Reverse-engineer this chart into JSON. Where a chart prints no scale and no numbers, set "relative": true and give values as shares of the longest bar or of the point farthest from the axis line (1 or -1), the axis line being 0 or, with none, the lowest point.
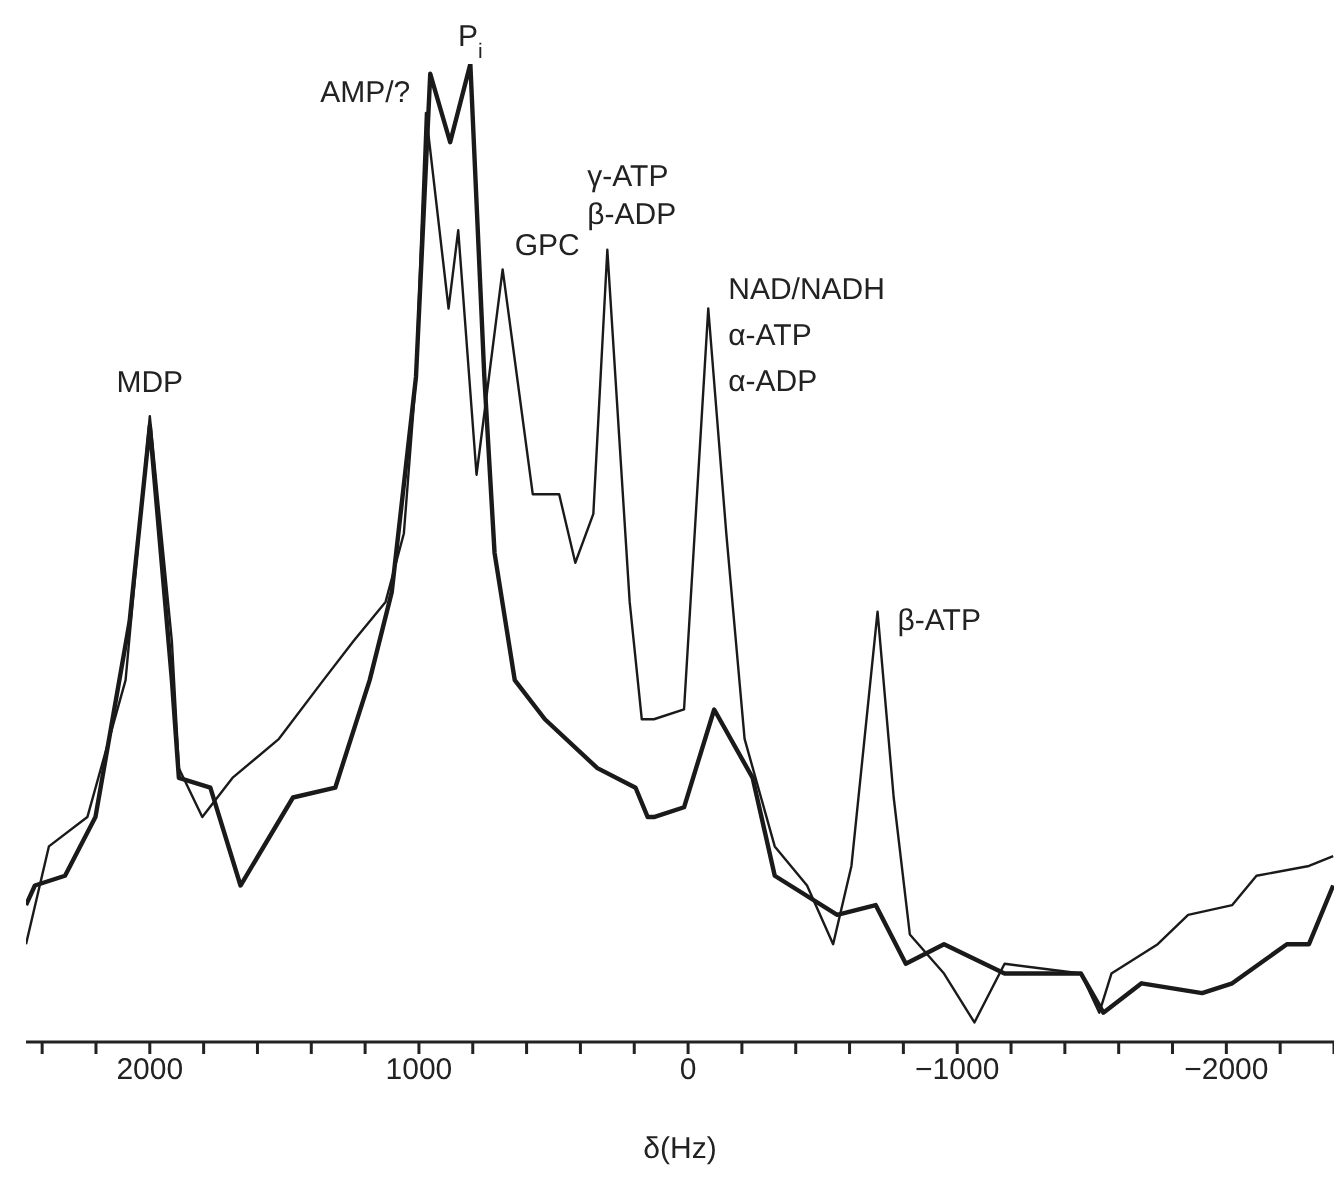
{
  "chart_data": {
    "type": "line",
    "relative": true,
    "xlabel": "δ(Hz)",
    "xlim": [
      2460,
      -2400
    ],
    "xticks": [
      {
        "value": 2400,
        "label": null
      },
      {
        "value": 2200,
        "label": null
      },
      2000,
      {
        "value": 1800,
        "label": null
      },
      {
        "value": 1600,
        "label": null
      },
      {
        "value": 1400,
        "label": null
      },
      {
        "value": 1200,
        "label": null
      },
      1000,
      {
        "value": 800,
        "label": null
      },
      {
        "value": 600,
        "label": null
      },
      {
        "value": 400,
        "label": null
      },
      {
        "value": 200,
        "label": null
      },
      0,
      {
        "value": -200,
        "label": null
      },
      {
        "value": -400,
        "label": null
      },
      {
        "value": -600,
        "label": null
      },
      {
        "value": -800,
        "label": null
      },
      {
        "value": -1000,
        "label": "−1000"
      },
      {
        "value": -1200,
        "label": null
      },
      {
        "value": -1400,
        "label": null
      },
      {
        "value": -1600,
        "label": null
      },
      {
        "value": -1800,
        "label": null
      },
      {
        "value": -2000,
        "label": "−2000"
      },
      {
        "value": -2200,
        "label": null
      },
      {
        "value": -2400,
        "label": null
      }
    ],
    "tick_labels": "x",
    "series": [
      {
        "color": "#1a1a1a",
        "x": [
          2460,
          2375,
          2232,
          2090,
          2000,
          1918,
          1892,
          1805,
          1693,
          1520,
          1355,
          1243,
          1124,
          1056,
          1011,
          974,
          890,
          854,
          786,
          689,
          577,
          479,
          419,
          352,
          300,
          217,
          172,
          127,
          15,
          -75,
          -142,
          -210,
          -322,
          -442,
          -539,
          -607,
          -704,
          -764,
          -824,
          -951,
          -1064,
          -1176,
          -1460,
          -1528,
          -1573,
          -1745,
          -1858,
          -2022,
          -2112,
          -2307,
          -2397
        ],
        "values": [
          0.1,
          0.2,
          0.23,
          0.37,
          0.64,
          0.41,
          0.28,
          0.23,
          0.27,
          0.31,
          0.37,
          0.41,
          0.45,
          0.52,
          0.68,
          0.95,
          0.75,
          0.83,
          0.58,
          0.79,
          0.56,
          0.56,
          0.49,
          0.54,
          0.81,
          0.45,
          0.33,
          0.33,
          0.34,
          0.75,
          0.52,
          0.31,
          0.2,
          0.16,
          0.1,
          0.18,
          0.44,
          0.25,
          0.11,
          0.07,
          0.02,
          0.08,
          0.07,
          0.03,
          0.07,
          0.1,
          0.13,
          0.14,
          0.17,
          0.18,
          0.19
        ]
      },
      {
        "color": "#1a1a1a",
        "x": [
          2460,
          2427,
          2315,
          2202,
          2075,
          2000,
          1918,
          1892,
          1775,
          1663,
          1468,
          1311,
          1183,
          1101,
          1011,
          958,
          884,
          809,
          757,
          719,
          644,
          532,
          337,
          195,
          150,
          127,
          15,
          -97,
          -240,
          -322,
          -554,
          -697,
          -809,
          -951,
          -1176,
          -1460,
          -1543,
          -1685,
          -1910,
          -2022,
          -2225,
          -2307,
          -2397
        ],
        "values": [
          0.14,
          0.16,
          0.17,
          0.23,
          0.43,
          0.63,
          0.37,
          0.27,
          0.26,
          0.16,
          0.25,
          0.26,
          0.37,
          0.46,
          0.68,
          0.99,
          0.92,
          1.0,
          0.68,
          0.5,
          0.37,
          0.33,
          0.28,
          0.26,
          0.23,
          0.23,
          0.24,
          0.34,
          0.27,
          0.17,
          0.13,
          0.14,
          0.08,
          0.1,
          0.07,
          0.07,
          0.03,
          0.06,
          0.05,
          0.06,
          0.1,
          0.1,
          0.16
        ]
      }
    ],
    "annotations": [
      {
        "text": "MDP",
        "x": 2000,
        "y": 0.64
      },
      {
        "text": "AMP/?",
        "x": 958,
        "y": 0.99
      },
      {
        "text": "P$_{i}$",
        "x": 809,
        "y": 1.0
      },
      {
        "text": "GPC",
        "x": 689,
        "y": 0.79
      },
      {
        "text": "γ-ATP\nβ-ADP",
        "x": 300,
        "y": 0.81
      },
      {
        "text": "NAD/NADH\nα-ATP\nα-ADP",
        "x": -75,
        "y": 0.75
      },
      {
        "text": "β-ATP",
        "x": -704,
        "y": 0.44
      }
    ]
  }
}
